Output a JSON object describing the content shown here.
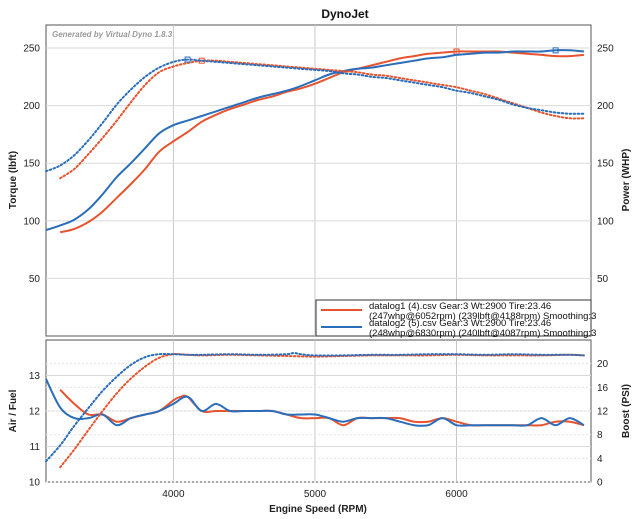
{
  "chart_data": [
    {
      "type": "line",
      "panel": "top",
      "title": "DynoJet",
      "watermark": "Generated by Virtual Dyno 1.8.3",
      "xlabel": "",
      "ylabel_left": "Torque (lbft)",
      "ylabel_right": "Power (WHP)",
      "xlim": [
        3100,
        6950
      ],
      "ylim_left": [
        0,
        270
      ],
      "ylim_right": [
        0,
        270
      ],
      "xticks": [
        4000,
        5000,
        6000
      ],
      "yticks_left": [
        50,
        100,
        150,
        200,
        250
      ],
      "yticks_right": [
        50,
        100,
        150,
        200,
        250
      ],
      "grid": true,
      "legend_position": "bottom-right",
      "legend": [
        {
          "line1": "datalog1 (4).csv Gear:3 Wt:2900 Tire:23.46",
          "line2": "(247whp@6052rpm) (239lbft@4188rpm) Smoothing:3",
          "color": "#e8532f"
        },
        {
          "line1": "datalog2 (5).csv Gear:3 Wt:2900 Tire:23.46",
          "line2": "(248whp@6830rpm) (240lbft@4087rpm) Smoothing:3",
          "color": "#2a6ebb"
        }
      ],
      "series": [
        {
          "name": "datalog1 (4).csv",
          "measure": "power",
          "color": "#e8532f",
          "style": "solid",
          "x": [
            3200,
            3300,
            3400,
            3500,
            3600,
            3700,
            3800,
            3900,
            4000,
            4100,
            4200,
            4300,
            4400,
            4500,
            4600,
            4700,
            4800,
            4900,
            5000,
            5100,
            5200,
            5300,
            5400,
            5500,
            5600,
            5700,
            5800,
            5900,
            6000,
            6100,
            6200,
            6300,
            6400,
            6500,
            6600,
            6700,
            6800,
            6900
          ],
          "y": [
            90,
            93,
            99,
            108,
            120,
            132,
            145,
            160,
            169,
            177,
            186,
            192,
            197,
            201,
            205,
            208,
            212,
            215,
            219,
            224,
            229,
            232,
            235,
            238,
            241,
            243,
            245,
            246,
            247,
            247,
            247,
            247,
            246,
            245,
            244,
            243,
            243,
            244
          ]
        },
        {
          "name": "datalog2 (5).csv",
          "measure": "power",
          "color": "#2a6ebb",
          "style": "solid",
          "x": [
            3100,
            3200,
            3300,
            3400,
            3500,
            3600,
            3700,
            3800,
            3900,
            4000,
            4100,
            4200,
            4300,
            4400,
            4500,
            4600,
            4700,
            4800,
            4900,
            5000,
            5100,
            5200,
            5300,
            5400,
            5500,
            5600,
            5700,
            5800,
            5900,
            6000,
            6100,
            6200,
            6300,
            6400,
            6500,
            6600,
            6700,
            6800,
            6900
          ],
          "y": [
            92,
            96,
            101,
            110,
            123,
            138,
            150,
            163,
            176,
            183,
            187,
            191,
            195,
            199,
            203,
            207,
            210,
            213,
            217,
            222,
            227,
            230,
            232,
            233,
            235,
            237,
            239,
            241,
            242,
            244,
            245,
            246,
            246,
            247,
            247,
            247,
            248,
            248,
            247
          ]
        },
        {
          "name": "datalog1 (4).csv",
          "measure": "torque",
          "color": "#e8532f",
          "style": "dotted",
          "x": [
            3200,
            3300,
            3400,
            3500,
            3600,
            3700,
            3800,
            3900,
            4000,
            4100,
            4200,
            4300,
            4400,
            4500,
            4600,
            4700,
            4800,
            4900,
            5000,
            5100,
            5200,
            5300,
            5400,
            5500,
            5600,
            5700,
            5800,
            5900,
            6000,
            6100,
            6200,
            6300,
            6400,
            6500,
            6600,
            6700,
            6800,
            6900
          ],
          "y": [
            137,
            145,
            158,
            172,
            187,
            203,
            218,
            229,
            234,
            237,
            239,
            239,
            238,
            237,
            236,
            235,
            234,
            233,
            232,
            231,
            230,
            229,
            227,
            226,
            224,
            222,
            220,
            218,
            216,
            213,
            210,
            206,
            202,
            198,
            194,
            191,
            189,
            189
          ]
        },
        {
          "name": "datalog2 (5).csv",
          "measure": "torque",
          "color": "#2a6ebb",
          "style": "dotted",
          "x": [
            3100,
            3200,
            3300,
            3400,
            3500,
            3600,
            3700,
            3800,
            3900,
            4000,
            4100,
            4200,
            4300,
            4400,
            4500,
            4600,
            4700,
            4800,
            4900,
            5000,
            5100,
            5200,
            5300,
            5400,
            5500,
            5600,
            5700,
            5800,
            5900,
            6000,
            6100,
            6200,
            6300,
            6400,
            6500,
            6600,
            6700,
            6800,
            6900
          ],
          "y": [
            143,
            148,
            157,
            170,
            185,
            201,
            214,
            225,
            233,
            238,
            240,
            239,
            238,
            237,
            236,
            235,
            234,
            233,
            232,
            231,
            230,
            228,
            227,
            225,
            224,
            222,
            220,
            218,
            216,
            213,
            211,
            208,
            205,
            201,
            198,
            196,
            194,
            193,
            193
          ]
        }
      ]
    },
    {
      "type": "line",
      "panel": "bottom",
      "title": "",
      "xlabel": "Engine Speed (RPM)",
      "ylabel_left": "Air / Fuel",
      "ylabel_right": "Boost (PSI)",
      "xlim": [
        3100,
        6950
      ],
      "ylim_left": [
        10,
        14
      ],
      "ylim_right": [
        0,
        24
      ],
      "xticks": [
        4000,
        5000,
        6000
      ],
      "yticks_left": [
        10,
        11,
        12,
        13
      ],
      "yticks_right": [
        0,
        4,
        8,
        12,
        16,
        20
      ],
      "grid": true,
      "series": [
        {
          "name": "datalog1 (4).csv",
          "measure": "afr",
          "color": "#e8532f",
          "style": "solid",
          "x": [
            3200,
            3300,
            3400,
            3500,
            3600,
            3700,
            3800,
            3900,
            4000,
            4050,
            4100,
            4200,
            4300,
            4400,
            4500,
            4600,
            4700,
            4800,
            4900,
            5000,
            5100,
            5200,
            5300,
            5400,
            5500,
            5600,
            5700,
            5800,
            5900,
            6000,
            6100,
            6200,
            6300,
            6400,
            6500,
            6600,
            6700,
            6800,
            6900
          ],
          "y": [
            12.6,
            12.2,
            11.9,
            11.9,
            11.7,
            11.8,
            11.9,
            12.0,
            12.3,
            12.4,
            12.4,
            12.0,
            12.0,
            12.0,
            12.0,
            12.0,
            12.0,
            11.9,
            11.8,
            11.8,
            11.8,
            11.6,
            11.8,
            11.8,
            11.8,
            11.8,
            11.7,
            11.7,
            11.8,
            11.7,
            11.6,
            11.6,
            11.6,
            11.6,
            11.6,
            11.6,
            11.7,
            11.7,
            11.6
          ]
        },
        {
          "name": "datalog2 (5).csv",
          "measure": "afr",
          "color": "#2a6ebb",
          "style": "solid",
          "x": [
            3100,
            3200,
            3300,
            3400,
            3500,
            3600,
            3700,
            3800,
            3900,
            4000,
            4100,
            4200,
            4300,
            4400,
            4500,
            4600,
            4700,
            4800,
            4900,
            5000,
            5100,
            5200,
            5300,
            5400,
            5500,
            5600,
            5700,
            5800,
            5900,
            6000,
            6100,
            6200,
            6300,
            6400,
            6500,
            6600,
            6700,
            6800,
            6900
          ],
          "y": [
            12.9,
            12.1,
            11.8,
            11.8,
            11.9,
            11.6,
            11.8,
            11.9,
            12.0,
            12.2,
            12.4,
            12.0,
            12.2,
            12.0,
            12.0,
            12.0,
            12.0,
            11.9,
            11.9,
            11.9,
            11.8,
            11.7,
            11.8,
            11.8,
            11.8,
            11.7,
            11.6,
            11.6,
            11.8,
            11.6,
            11.6,
            11.6,
            11.6,
            11.6,
            11.6,
            11.8,
            11.6,
            11.8,
            11.6
          ]
        },
        {
          "name": "datalog1 (4).csv",
          "measure": "boost",
          "color": "#e8532f",
          "style": "dotted",
          "x": [
            3200,
            3300,
            3400,
            3500,
            3600,
            3700,
            3800,
            3900,
            4000,
            4100,
            4200,
            4400,
            4600,
            4800,
            5000,
            5200,
            5400,
            5600,
            5800,
            6000,
            6200,
            6400,
            6600,
            6800,
            6900
          ],
          "y": [
            2.5,
            5.5,
            8.8,
            12,
            15,
            17.5,
            19.5,
            21,
            21.6,
            21.5,
            21.4,
            21.5,
            21.4,
            21.3,
            21.2,
            21.3,
            21.4,
            21.4,
            21.4,
            21.5,
            21.4,
            21.4,
            21.4,
            21.5,
            21.4
          ]
        },
        {
          "name": "datalog2 (5).csv",
          "measure": "boost",
          "color": "#2a6ebb",
          "style": "dotted",
          "x": [
            3100,
            3200,
            3300,
            3400,
            3500,
            3600,
            3700,
            3800,
            3900,
            4000,
            4100,
            4200,
            4400,
            4600,
            4800,
            4850,
            4900,
            5000,
            5200,
            5400,
            5600,
            5800,
            6000,
            6200,
            6400,
            6600,
            6800,
            6900
          ],
          "y": [
            3.5,
            6.2,
            9.5,
            12.5,
            15.4,
            17.8,
            19.8,
            21.1,
            21.6,
            21.6,
            21.5,
            21.5,
            21.6,
            21.5,
            21.6,
            21.8,
            21.6,
            21.4,
            21.4,
            21.5,
            21.5,
            21.6,
            21.6,
            21.5,
            21.6,
            21.5,
            21.5,
            21.4
          ]
        }
      ]
    }
  ]
}
